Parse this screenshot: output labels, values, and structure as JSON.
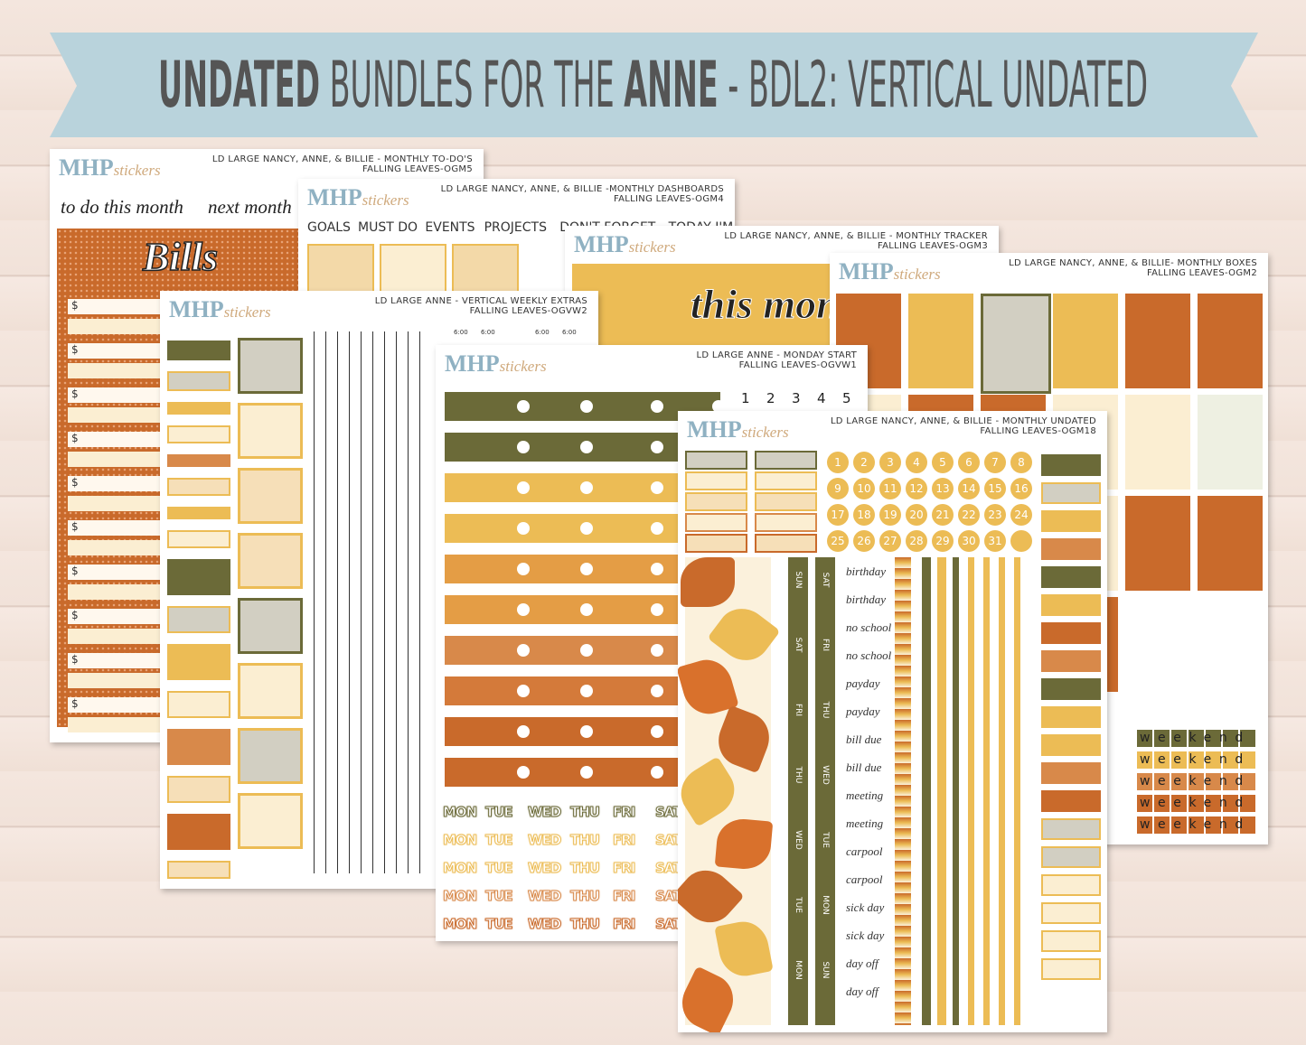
{
  "header": {
    "title": [
      {
        "text": "UNDATED",
        "bold": true
      },
      {
        "text": " BUNDLES FOR THE ",
        "bold": false
      },
      {
        "text": "ANNE",
        "bold": true
      },
      {
        "text": " - BDL2: VERTICAL UNDATED",
        "bold": false
      }
    ]
  },
  "brand": {
    "main": "MHP",
    "sub": "stickers"
  },
  "sheets": [
    {
      "kind": "todo",
      "title": "LD LARGE NANCY, ANNE, & BILLIE - MONTHLY TO-DO'S",
      "code": "FALLING LEAVES-OGM5",
      "labels": [
        "to do this month",
        "next month"
      ],
      "panel": "Bills",
      "currency": "$"
    },
    {
      "kind": "dashboards",
      "title": "LD LARGE NANCY, ANNE, & BILLIE -MONTHLY DASHBOARDS",
      "code": "FALLING LEAVES-OGM4",
      "tabs": [
        "GOALS",
        "MUST DO",
        "EVENTS",
        "PROJECTS",
        "DON'T FORGET",
        "TODAY I'M GRATEFUL FOR"
      ]
    },
    {
      "kind": "tracker",
      "title": "LD LARGE NANCY, ANNE, & BILLIE - MONTHLY TRACKER",
      "code": "FALLING LEAVES-OGM3",
      "panel": "this month"
    },
    {
      "kind": "boxes",
      "title": "LD LARGE NANCY, ANNE, & BILLIE- MONTHLY BOXES",
      "code": "FALLING LEAVES-OGM2",
      "banner": "weekend"
    },
    {
      "kind": "extras",
      "title": "LD LARGE ANNE - VERTICAL WEEKLY EXTRAS",
      "code": "FALLING LEAVES-OGVW2",
      "time": "6:00"
    },
    {
      "kind": "monday",
      "title": "LD LARGE ANNE - MONDAY START",
      "code": "FALLING LEAVES-OGVW1",
      "numbers": [
        1,
        2,
        3,
        4,
        5
      ],
      "days": [
        "MON",
        "TUE",
        "WED",
        "THU",
        "FRI",
        "SAT"
      ]
    },
    {
      "kind": "undated",
      "title": "LD LARGE NANCY, ANNE, & BILLIE - MONTHLY UNDATED",
      "code": "FALLING LEAVES-OGM18",
      "numbers": [
        1,
        2,
        3,
        4,
        5,
        6,
        7,
        8,
        9,
        10,
        11,
        12,
        13,
        14,
        15,
        16,
        17,
        18,
        19,
        20,
        21,
        22,
        23,
        24,
        25,
        26,
        27,
        28,
        29,
        30,
        31
      ],
      "strips": [
        [
          "SUN",
          "SAT",
          "FRI",
          "THU",
          "WED",
          "TUE",
          "MON"
        ],
        [
          "SAT",
          "FRI",
          "THU",
          "WED",
          "TUE",
          "MON",
          "SUN"
        ]
      ],
      "words": [
        "birthday",
        "birthday",
        "no school",
        "no school",
        "payday",
        "payday",
        "bill due",
        "bill due",
        "meeting",
        "meeting",
        "carpool",
        "carpool",
        "sick day",
        "sick day",
        "day off",
        "day off"
      ]
    }
  ]
}
